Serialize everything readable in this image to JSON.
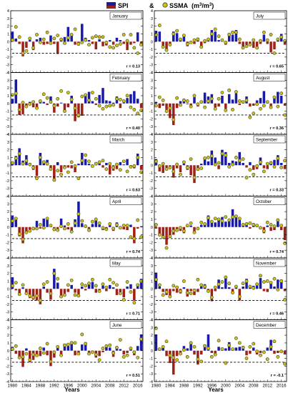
{
  "legend": {
    "spi_label": "SPI",
    "amp": "&",
    "ssma_label": "SSMA",
    "unit_prefix": "(m",
    "unit_sup1": "3",
    "unit_mid": "/m",
    "unit_sup2": "3",
    "unit_suffix": ")"
  },
  "colors": {
    "positive_bar": "#1a1aa8",
    "negative_bar": "#a02018",
    "negative_bar_highlight": "#f3c6d2",
    "dot_fill": "#c8c020",
    "dot_stroke": "#404010",
    "threshold_line": "#000000"
  },
  "x_axis": {
    "title": "Years",
    "tick_labels": [
      "1980",
      "1984",
      "1988",
      "1992",
      "1996",
      "2000",
      "2004",
      "2008",
      "2012",
      "2016"
    ]
  },
  "chart_data": {
    "type": "bar",
    "x_range": [
      1980,
      2017
    ],
    "y_range": [
      -4,
      4
    ],
    "y_ticks": [
      -4,
      -3,
      -2,
      -1,
      0,
      1,
      2,
      3,
      4
    ],
    "threshold": -1.5,
    "threshold_style": "dashed",
    "bar_series": "SPI",
    "dot_series": "SSMA",
    "panels": [
      {
        "month": "January",
        "r": "r = 0.13",
        "spi": [
          1.3,
          0.4,
          -0.3,
          -1.9,
          -0.8,
          0.2,
          -1.1,
          0.3,
          0.5,
          -0.4,
          -0.3,
          0.8,
          -0.3,
          -1.6,
          0.2,
          0.6,
          1.9,
          1.0,
          -0.4,
          -0.5,
          2.3,
          0.5,
          0.2,
          -0.3,
          -1.0,
          0.3,
          -0.6,
          -0.5,
          0.2,
          -0.4,
          0.5,
          0.2,
          -0.3,
          -1.1,
          -0.4,
          -0.2,
          1.2,
          -0.3
        ],
        "ssma": [
          0.2,
          1.9,
          0.6,
          -1.5,
          -1.2,
          0.4,
          -0.8,
          0.9,
          -0.1,
          0.3,
          1.2,
          -0.2,
          0.4,
          0.8,
          0.3,
          -0.2,
          0.5,
          0.9,
          1.6,
          -0.3,
          -0.1,
          0.2,
          -0.4,
          0.5,
          0.7,
          0.6,
          0.6,
          -0.1,
          -0.7,
          -0.8,
          -0.5,
          -0.3,
          0.9,
          0.1,
          0.9,
          -0.8,
          -1.5,
          -0.4
        ]
      },
      {
        "month": "July",
        "r": "r = 0.65",
        "spi": [
          1.4,
          1.3,
          -0.6,
          -1.0,
          -0.5,
          1.3,
          1.1,
          0.2,
          0.9,
          -0.6,
          -0.2,
          -0.3,
          0.5,
          -0.8,
          -0.2,
          0.1,
          1.5,
          1.3,
          0.2,
          0.1,
          -0.4,
          1.1,
          0.9,
          1.5,
          -0.3,
          -0.9,
          -0.4,
          -0.5,
          -0.8,
          -0.9,
          -0.3,
          0.9,
          -0.3,
          -1.4,
          -1.0,
          0.2,
          1.0,
          -0.4
        ],
        "ssma": [
          0.9,
          2.1,
          -0.7,
          -1.1,
          -0.4,
          1.0,
          1.4,
          0.3,
          0.8,
          -0.3,
          -0.1,
          0.2,
          0.3,
          -0.7,
          0.1,
          0.3,
          1.0,
          1.6,
          0.7,
          0.2,
          -0.1,
          0.9,
          1.2,
          1.2,
          0.3,
          -0.8,
          -0.6,
          -0.4,
          0.2,
          -0.8,
          0.1,
          1.2,
          0.2,
          0.9,
          -1.5,
          0.3,
          0.6,
          0.1
        ]
      },
      {
        "month": "February",
        "r": "r = 0.40",
        "spi": [
          0.6,
          3.1,
          -1.5,
          -1.4,
          -0.3,
          0.2,
          -0.5,
          -0.7,
          0.4,
          0.2,
          -0.2,
          0.9,
          -1.2,
          -0.4,
          0.1,
          -1.1,
          -0.5,
          1.0,
          -2.3,
          -1.8,
          -1.6,
          1.0,
          1.5,
          0.3,
          -0.2,
          1.1,
          2.0,
          0.4,
          0.3,
          0.1,
          0.9,
          -0.6,
          0.1,
          0.7,
          1.2,
          1.6,
          0.6,
          -0.6
        ],
        "ssma": [
          1.1,
          1.3,
          -0.8,
          0.1,
          -0.4,
          -0.1,
          0.2,
          -0.6,
          0.3,
          1.2,
          0.7,
          0.2,
          -0.3,
          0.6,
          1.6,
          -1.0,
          1.4,
          0.5,
          -0.6,
          -1.5,
          0.9,
          1.1,
          0.4,
          1.4,
          0.6,
          -0.3,
          -0.7,
          -0.4,
          -0.3,
          -0.2,
          0.6,
          0.5,
          0.3,
          1.0,
          -0.5,
          -0.8,
          -1.3,
          -0.9
        ]
      },
      {
        "month": "August",
        "r": "r = 0.36",
        "spi": [
          0.2,
          -0.6,
          -0.3,
          -0.8,
          -1.9,
          -2.8,
          -0.6,
          0.3,
          0.6,
          -0.1,
          -0.3,
          0.8,
          -0.4,
          0.2,
          1.4,
          0.9,
          1.2,
          -0.5,
          -0.4,
          1.0,
          -0.7,
          1.2,
          0.5,
          1.3,
          -0.2,
          0.2,
          0.9,
          -0.4,
          -0.3,
          0.4,
          0.7,
          1.6,
          0.2,
          -0.6,
          0.9,
          1.5,
          1.0,
          -0.3
        ],
        "ssma": [
          -0.3,
          0.8,
          0.4,
          -1.0,
          -0.6,
          -2.1,
          0.7,
          -0.2,
          0.4,
          0.3,
          -0.4,
          1.0,
          -0.1,
          0.2,
          -0.5,
          0.3,
          0.6,
          -0.7,
          0.6,
          1.4,
          -0.9,
          1.7,
          -0.8,
          1.5,
          0.3,
          0.2,
          0.4,
          -1.8,
          -1.3,
          -0.1,
          -0.7,
          -0.3,
          0.2,
          -0.5,
          0.8,
          -0.4,
          1.3,
          -1.5
        ]
      },
      {
        "month": "March",
        "r": "r = 0.63",
        "spi": [
          0.4,
          1.2,
          2.2,
          0.6,
          1.3,
          0.3,
          -0.6,
          -1.4,
          1.6,
          0.6,
          0.7,
          -0.6,
          -2.1,
          0.4,
          -0.9,
          -0.4,
          -0.3,
          -0.4,
          -0.9,
          0.2,
          1.6,
          0.8,
          0.2,
          -0.3,
          0.4,
          0.2,
          -0.3,
          0.3,
          -1.2,
          -0.7,
          -0.5,
          0.4,
          0.1,
          0.8,
          -0.3,
          -0.4,
          1.5,
          -0.6
        ],
        "ssma": [
          0.3,
          0.9,
          1.5,
          0.2,
          0.6,
          0.1,
          -0.3,
          -1.7,
          1.0,
          0.4,
          0.2,
          -0.5,
          -1.9,
          -0.7,
          -1.2,
          -0.3,
          -0.9,
          0.4,
          -0.1,
          -1.7,
          0.6,
          1.3,
          0.5,
          -0.1,
          0.2,
          0.4,
          0.6,
          -0.5,
          0.2,
          -0.3,
          0.1,
          -0.6,
          0.5,
          -0.8,
          -0.2,
          -0.1,
          1.0,
          -0.9
        ]
      },
      {
        "month": "September",
        "r": "r = 0.33",
        "spi": [
          0.8,
          -0.8,
          -1.0,
          -0.3,
          -0.5,
          -1.6,
          -0.4,
          -0.9,
          0.2,
          -0.6,
          -1.3,
          -2.3,
          -0.7,
          0.2,
          0.8,
          0.5,
          1.9,
          1.0,
          -0.5,
          2.0,
          1.7,
          0.3,
          0.6,
          0.5,
          1.7,
          0.3,
          -0.3,
          0.4,
          -0.6,
          -0.5,
          1.0,
          -0.4,
          -0.5,
          0.5,
          0.7,
          1.3,
          0.3,
          -0.5
        ],
        "ssma": [
          0.5,
          -0.1,
          0.2,
          -0.5,
          -0.3,
          -0.8,
          0.1,
          -1.2,
          0.4,
          -0.3,
          0.8,
          -1.6,
          -0.5,
          -0.4,
          0.9,
          1.0,
          1.2,
          0.1,
          0.3,
          1.5,
          1.3,
          -0.2,
          0.1,
          1.0,
          0.6,
          0.8,
          -1.6,
          -0.6,
          -1.2,
          -0.1,
          0.4,
          -0.8,
          0.2,
          0.3,
          -0.2,
          0.9,
          -0.3,
          0.6
        ]
      },
      {
        "month": "April",
        "r": "r = 0.74",
        "spi": [
          1.5,
          1.2,
          -1.2,
          -2.1,
          -0.8,
          -0.3,
          -0.4,
          0.8,
          -0.2,
          1.1,
          1.0,
          0.2,
          -0.5,
          -0.4,
          1.1,
          0.2,
          -0.3,
          -0.5,
          1.0,
          3.3,
          0.5,
          0.2,
          -0.6,
          0.4,
          0.9,
          0.3,
          -0.4,
          -0.2,
          0.2,
          -0.5,
          0.6,
          0.1,
          -0.3,
          -0.4,
          0.3,
          -2.1,
          -0.2,
          0.1
        ],
        "ssma": [
          0.8,
          1.1,
          -0.9,
          -1.6,
          -0.7,
          -0.5,
          -0.2,
          -0.2,
          0.3,
          -0.1,
          1.1,
          0.2,
          -0.3,
          -0.4,
          0.1,
          -0.2,
          0.4,
          -0.6,
          0.5,
          1.7,
          0.8,
          0.1,
          -0.4,
          0.7,
          1.0,
          0.5,
          -0.1,
          -0.3,
          0.4,
          -0.2,
          0.3,
          -0.1,
          0.2,
          0.2,
          -1.3,
          -1.5,
          0.9,
          -1.3
        ]
      },
      {
        "month": "October",
        "r": "r = 0.74",
        "spi": [
          -0.2,
          -0.9,
          -1.3,
          -2.3,
          -1.4,
          -1.0,
          -0.6,
          -0.5,
          -0.8,
          0.3,
          0.2,
          -0.6,
          -0.1,
          0.3,
          0.5,
          1.5,
          0.8,
          0.6,
          1.1,
          1.3,
          0.7,
          1.0,
          2.3,
          1.5,
          0.9,
          0.4,
          0.5,
          -0.2,
          0.5,
          0.2,
          -0.3,
          -0.8,
          0.2,
          -0.5,
          -0.4,
          0.8,
          -0.4,
          -1.7
        ],
        "ssma": [
          0.3,
          -1.0,
          -1.3,
          -2.7,
          -1.2,
          -0.5,
          -0.4,
          -0.1,
          -0.5,
          0.2,
          0.5,
          -0.7,
          -0.2,
          0.6,
          0.4,
          1.2,
          0.7,
          1.1,
          1.0,
          0.8,
          1.3,
          0.9,
          1.3,
          1.4,
          1.1,
          0.3,
          0.4,
          0.5,
          0.3,
          0.2,
          -0.1,
          -0.5,
          0.6,
          0.3,
          0.1,
          0.9,
          0.2,
          -2.1
        ]
      },
      {
        "month": "May",
        "r": "r = 0.71",
        "spi": [
          1.5,
          -0.2,
          -0.8,
          0.2,
          -0.5,
          -1.2,
          -1.4,
          -1.5,
          -2.0,
          0.3,
          -0.5,
          -1.4,
          2.6,
          0.8,
          -1.0,
          -0.6,
          -0.4,
          0.5,
          -0.5,
          -0.7,
          0.3,
          -0.2,
          0.8,
          0.9,
          -0.5,
          -0.2,
          0.4,
          -0.3,
          0.5,
          0.2,
          -0.8,
          -0.4,
          -1.1,
          0.3,
          0.6,
          -1.5,
          0.4,
          1.3
        ],
        "ssma": [
          0.4,
          0.8,
          -0.7,
          0.5,
          -0.6,
          -0.9,
          -1.1,
          -0.9,
          -1.5,
          0.6,
          0.9,
          -0.6,
          2.0,
          1.3,
          -1.0,
          -0.8,
          0.5,
          1.1,
          -0.8,
          -0.9,
          0.6,
          0.4,
          0.7,
          1.2,
          0.4,
          -0.3,
          0.6,
          0.2,
          1.2,
          0.8,
          0.5,
          -0.6,
          -1.4,
          0.9,
          -0.4,
          -1.8,
          0.5,
          1.0
        ]
      },
      {
        "month": "November",
        "r": "r = 0.46",
        "spi": [
          2.1,
          0.3,
          -0.4,
          -0.8,
          -1.1,
          -0.3,
          -0.5,
          -0.6,
          0.2,
          -1.0,
          -0.3,
          -0.8,
          -0.4,
          0.3,
          0.6,
          -0.4,
          -1.6,
          -0.3,
          1.2,
          0.2,
          1.4,
          0.2,
          -0.6,
          0.4,
          -1.5,
          0.3,
          1.3,
          0.2,
          0.4,
          0.5,
          1.4,
          -0.3,
          -0.4,
          0.8,
          0.3,
          1.2,
          1.2,
          -0.3
        ],
        "ssma": [
          1.2,
          0.5,
          -0.8,
          -0.4,
          -1.0,
          0.4,
          0.2,
          -0.3,
          1.0,
          -0.5,
          -0.6,
          -0.2,
          1.2,
          0.5,
          0.3,
          -0.3,
          -1.1,
          0.2,
          0.6,
          0.9,
          1.5,
          0.7,
          -0.5,
          0.3,
          -1.0,
          0.7,
          1.0,
          0.3,
          0.1,
          0.6,
          1.7,
          0.9,
          1.0,
          0.8,
          1.3,
          -0.1,
          1.0,
          -1.4
        ]
      },
      {
        "month": "June",
        "r": "r = 0.51",
        "spi": [
          0.5,
          -0.4,
          -1.0,
          -2.1,
          0.3,
          -1.5,
          -1.2,
          -0.8,
          -0.7,
          0.4,
          -0.6,
          -2.0,
          -0.9,
          0.6,
          -0.5,
          0.9,
          0.6,
          1.2,
          -0.6,
          -0.4,
          0.8,
          1.1,
          -0.5,
          -0.3,
          -0.9,
          -0.7,
          -0.2,
          0.6,
          0.4,
          -0.8,
          0.5,
          0.2,
          -0.5,
          -0.3,
          0.4,
          -0.6,
          0.6,
          2.1
        ],
        "ssma": [
          0.2,
          0.6,
          -0.9,
          -0.8,
          -0.4,
          -1.2,
          -0.5,
          -0.6,
          0.3,
          -0.3,
          0.9,
          -1.4,
          -0.2,
          0.5,
          -0.6,
          0.7,
          0.8,
          1.0,
          1.0,
          -0.4,
          2.1,
          0.9,
          -0.4,
          -0.2,
          -0.5,
          -1.2,
          0.3,
          0.6,
          0.7,
          -0.3,
          0.4,
          1.4,
          -0.8,
          -0.6,
          0.3,
          -0.2,
          -0.9,
          1.5
        ]
      },
      {
        "month": "December",
        "r": "r = -0.1",
        "spi": [
          2.1,
          0.3,
          0.4,
          -0.7,
          -1.6,
          -3.1,
          -0.7,
          -0.4,
          0.6,
          0.3,
          1.1,
          -0.5,
          -1.8,
          -0.5,
          0.8,
          2.1,
          -0.3,
          -0.4,
          0.5,
          0.4,
          0.3,
          1.1,
          0.2,
          0.4,
          0.5,
          0.6,
          -0.6,
          -0.4,
          0.4,
          -0.5,
          -0.3,
          -0.2,
          0.4,
          1.4,
          -0.4,
          -0.3,
          -0.1,
          -0.5
        ],
        "ssma": [
          2.9,
          0.2,
          0.5,
          1.2,
          -0.6,
          -0.9,
          -1.2,
          -0.4,
          0.1,
          -0.8,
          1.0,
          0.5,
          -1.1,
          -1.4,
          0.6,
          0.3,
          -0.8,
          -0.5,
          1.3,
          0.2,
          -1.6,
          0.7,
          0.2,
          1.6,
          1.0,
          0.4,
          -1.0,
          0.5,
          0.9,
          -0.1,
          -0.6,
          -0.2,
          -1.1,
          0.5,
          1.2,
          -0.8,
          -0.1,
          -1.7
        ]
      }
    ]
  }
}
